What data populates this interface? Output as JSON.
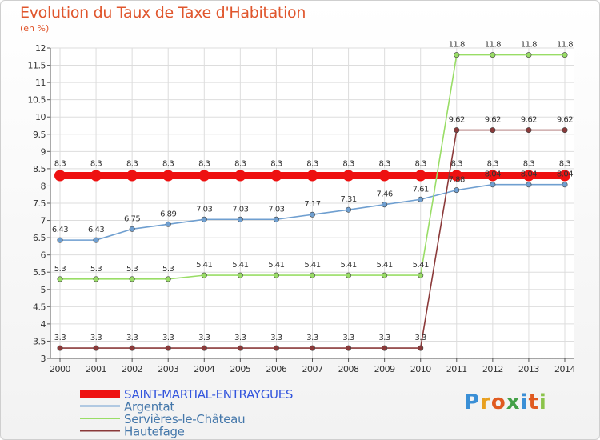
{
  "title": "Evolution du Taux de Taxe d'Habitation",
  "subtitle": "(en %)",
  "brand": "Proxiti",
  "colors": {
    "title": "#e0562d",
    "grid": "#dddddd",
    "axis": "#555555"
  },
  "chart_data": {
    "type": "line",
    "title": "Evolution du Taux de Taxe d'Habitation",
    "ylabel": "(en %)",
    "xlabel": "",
    "ylim": [
      3,
      12
    ],
    "yticks": [
      "3",
      "3.5",
      "4",
      "4.5",
      "5",
      "5.5",
      "6",
      "6.5",
      "7",
      "7.5",
      "8",
      "8.5",
      "9",
      "9.5",
      "10",
      "10.5",
      "11",
      "11.5",
      "12"
    ],
    "grid": true,
    "legend": "bottom-left",
    "categories": [
      "2000",
      "2001",
      "2002",
      "2003",
      "2004",
      "2005",
      "2006",
      "2007",
      "2008",
      "2009",
      "2010",
      "2011",
      "2012",
      "2013",
      "2014"
    ],
    "series": [
      {
        "name": "SAINT-MARTIAL-ENTRAYGUES",
        "color": "#ee1111",
        "values": [
          8.3,
          8.3,
          8.3,
          8.3,
          8.3,
          8.3,
          8.3,
          8.3,
          8.3,
          8.3,
          8.3,
          8.3,
          8.3,
          8.3,
          8.3
        ],
        "labels": [
          "8.3",
          "8.3",
          "8.3",
          "8.3",
          "8.3",
          "8.3",
          "8.3",
          "8.3",
          "8.3",
          "8.3",
          "8.3",
          "8.3",
          "8.3",
          "8.3",
          "8.3"
        ]
      },
      {
        "name": "Argentat",
        "color": "#6f9fd0",
        "values": [
          6.43,
          6.43,
          6.75,
          6.89,
          7.03,
          7.03,
          7.03,
          7.17,
          7.31,
          7.46,
          7.61,
          7.88,
          8.04,
          8.04,
          8.04
        ],
        "labels": [
          "6.43",
          "6.43",
          "6.75",
          "6.89",
          "7.03",
          "7.03",
          "7.03",
          "7.17",
          "7.31",
          "7.46",
          "7.61",
          "7.88",
          "8.04",
          "8.04",
          "8.04"
        ]
      },
      {
        "name": "Servières-le-Château",
        "color": "#99dd66",
        "values": [
          5.3,
          5.3,
          5.3,
          5.3,
          5.41,
          5.41,
          5.41,
          5.41,
          5.41,
          5.41,
          5.41,
          11.8,
          11.8,
          11.8,
          11.8
        ],
        "labels": [
          "5.3",
          "5.3",
          "5.3",
          "5.3",
          "5.41",
          "5.41",
          "5.41",
          "5.41",
          "5.41",
          "5.41",
          "5.41",
          "11.8",
          "11.8",
          "11.8",
          "11.8"
        ]
      },
      {
        "name": "Hautefage",
        "color": "#8b3a3a",
        "values": [
          3.3,
          3.3,
          3.3,
          3.3,
          3.3,
          3.3,
          3.3,
          3.3,
          3.3,
          3.3,
          3.3,
          9.62,
          9.62,
          9.62,
          9.62
        ],
        "labels": [
          "3.3",
          "3.3",
          "3.3",
          "3.3",
          "3.3",
          "3.3",
          "3.3",
          "3.3",
          "3.3",
          "3.3",
          "3.3",
          "9.62",
          "9.62",
          "9.62",
          "9.62"
        ]
      }
    ]
  }
}
